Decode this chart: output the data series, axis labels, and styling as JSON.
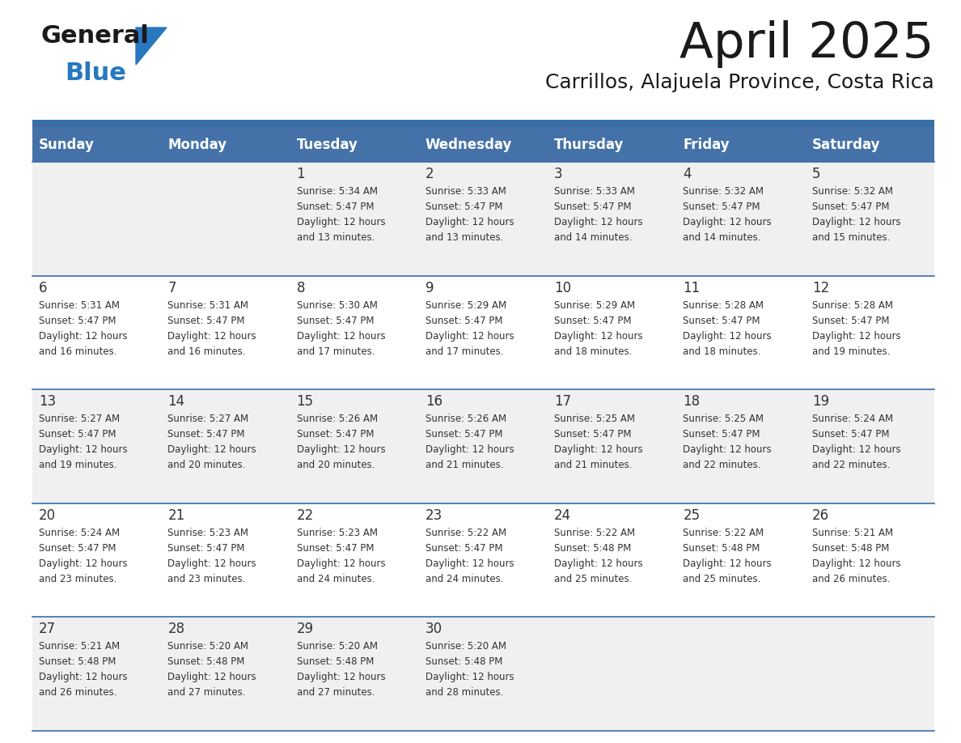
{
  "title": "April 2025",
  "subtitle": "Carrillos, Alajuela Province, Costa Rica",
  "days_of_week": [
    "Sunday",
    "Monday",
    "Tuesday",
    "Wednesday",
    "Thursday",
    "Friday",
    "Saturday"
  ],
  "header_bg_color": "#4472a8",
  "header_text_color": "#ffffff",
  "cell_bg_even": "#f0f0f0",
  "cell_bg_odd": "#ffffff",
  "separator_color": "#3a6ea5",
  "text_color": "#333333",
  "logo_black": "#1a1a1a",
  "logo_blue": "#2878c0",
  "calendar_data": [
    [
      {
        "day": "",
        "sunrise": "",
        "sunset": "",
        "daylight": ""
      },
      {
        "day": "",
        "sunrise": "",
        "sunset": "",
        "daylight": ""
      },
      {
        "day": "1",
        "sunrise": "5:34 AM",
        "sunset": "5:47 PM",
        "daylight": "12 hours and 13 minutes."
      },
      {
        "day": "2",
        "sunrise": "5:33 AM",
        "sunset": "5:47 PM",
        "daylight": "12 hours and 13 minutes."
      },
      {
        "day": "3",
        "sunrise": "5:33 AM",
        "sunset": "5:47 PM",
        "daylight": "12 hours and 14 minutes."
      },
      {
        "day": "4",
        "sunrise": "5:32 AM",
        "sunset": "5:47 PM",
        "daylight": "12 hours and 14 minutes."
      },
      {
        "day": "5",
        "sunrise": "5:32 AM",
        "sunset": "5:47 PM",
        "daylight": "12 hours and 15 minutes."
      }
    ],
    [
      {
        "day": "6",
        "sunrise": "5:31 AM",
        "sunset": "5:47 PM",
        "daylight": "12 hours and 16 minutes."
      },
      {
        "day": "7",
        "sunrise": "5:31 AM",
        "sunset": "5:47 PM",
        "daylight": "12 hours and 16 minutes."
      },
      {
        "day": "8",
        "sunrise": "5:30 AM",
        "sunset": "5:47 PM",
        "daylight": "12 hours and 17 minutes."
      },
      {
        "day": "9",
        "sunrise": "5:29 AM",
        "sunset": "5:47 PM",
        "daylight": "12 hours and 17 minutes."
      },
      {
        "day": "10",
        "sunrise": "5:29 AM",
        "sunset": "5:47 PM",
        "daylight": "12 hours and 18 minutes."
      },
      {
        "day": "11",
        "sunrise": "5:28 AM",
        "sunset": "5:47 PM",
        "daylight": "12 hours and 18 minutes."
      },
      {
        "day": "12",
        "sunrise": "5:28 AM",
        "sunset": "5:47 PM",
        "daylight": "12 hours and 19 minutes."
      }
    ],
    [
      {
        "day": "13",
        "sunrise": "5:27 AM",
        "sunset": "5:47 PM",
        "daylight": "12 hours and 19 minutes."
      },
      {
        "day": "14",
        "sunrise": "5:27 AM",
        "sunset": "5:47 PM",
        "daylight": "12 hours and 20 minutes."
      },
      {
        "day": "15",
        "sunrise": "5:26 AM",
        "sunset": "5:47 PM",
        "daylight": "12 hours and 20 minutes."
      },
      {
        "day": "16",
        "sunrise": "5:26 AM",
        "sunset": "5:47 PM",
        "daylight": "12 hours and 21 minutes."
      },
      {
        "day": "17",
        "sunrise": "5:25 AM",
        "sunset": "5:47 PM",
        "daylight": "12 hours and 21 minutes."
      },
      {
        "day": "18",
        "sunrise": "5:25 AM",
        "sunset": "5:47 PM",
        "daylight": "12 hours and 22 minutes."
      },
      {
        "day": "19",
        "sunrise": "5:24 AM",
        "sunset": "5:47 PM",
        "daylight": "12 hours and 22 minutes."
      }
    ],
    [
      {
        "day": "20",
        "sunrise": "5:24 AM",
        "sunset": "5:47 PM",
        "daylight": "12 hours and 23 minutes."
      },
      {
        "day": "21",
        "sunrise": "5:23 AM",
        "sunset": "5:47 PM",
        "daylight": "12 hours and 23 minutes."
      },
      {
        "day": "22",
        "sunrise": "5:23 AM",
        "sunset": "5:47 PM",
        "daylight": "12 hours and 24 minutes."
      },
      {
        "day": "23",
        "sunrise": "5:22 AM",
        "sunset": "5:47 PM",
        "daylight": "12 hours and 24 minutes."
      },
      {
        "day": "24",
        "sunrise": "5:22 AM",
        "sunset": "5:48 PM",
        "daylight": "12 hours and 25 minutes."
      },
      {
        "day": "25",
        "sunrise": "5:22 AM",
        "sunset": "5:48 PM",
        "daylight": "12 hours and 25 minutes."
      },
      {
        "day": "26",
        "sunrise": "5:21 AM",
        "sunset": "5:48 PM",
        "daylight": "12 hours and 26 minutes."
      }
    ],
    [
      {
        "day": "27",
        "sunrise": "5:21 AM",
        "sunset": "5:48 PM",
        "daylight": "12 hours and 26 minutes."
      },
      {
        "day": "28",
        "sunrise": "5:20 AM",
        "sunset": "5:48 PM",
        "daylight": "12 hours and 27 minutes."
      },
      {
        "day": "29",
        "sunrise": "5:20 AM",
        "sunset": "5:48 PM",
        "daylight": "12 hours and 27 minutes."
      },
      {
        "day": "30",
        "sunrise": "5:20 AM",
        "sunset": "5:48 PM",
        "daylight": "12 hours and 28 minutes."
      },
      {
        "day": "",
        "sunrise": "",
        "sunset": "",
        "daylight": ""
      },
      {
        "day": "",
        "sunrise": "",
        "sunset": "",
        "daylight": ""
      },
      {
        "day": "",
        "sunrise": "",
        "sunset": "",
        "daylight": ""
      }
    ]
  ]
}
